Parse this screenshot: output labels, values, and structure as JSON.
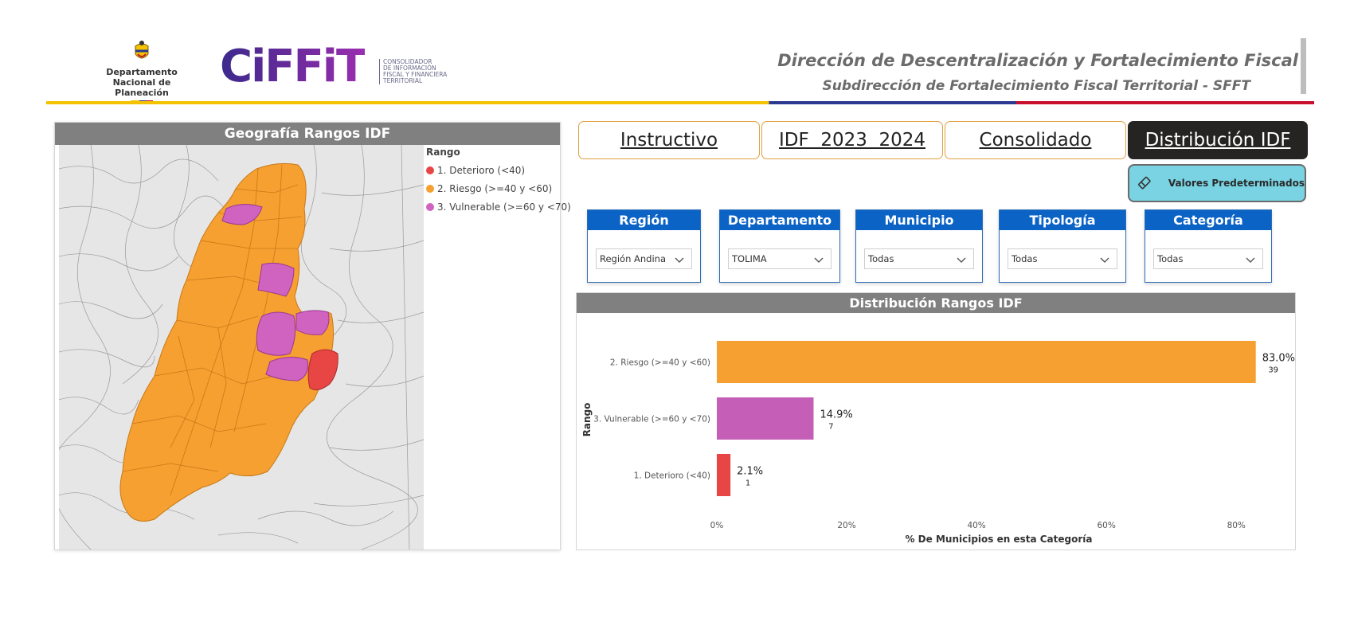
{
  "header": {
    "dnp_line1": "Departamento",
    "dnp_line2": "Nacional de Planeación",
    "ciffit_word": "CiFFiT",
    "ciffit_sub": [
      "CONSOLIDADOR",
      "DE INFORMACIÓN",
      "FISCAL Y FINANCIERA",
      "TERRITORIAL"
    ],
    "title": "Dirección de Descentralización y Fortalecimiento Fiscal",
    "subtitle": "Subdirección de Fortalecimiento Fiscal Territorial - SFFT"
  },
  "map": {
    "title": "Geografía Rangos IDF",
    "legend_title": "Rango",
    "legend": [
      {
        "label": "1. Deterioro (<40)",
        "color": "#e84545"
      },
      {
        "label": "2. Riesgo (>=40 y <60)",
        "color": "#f5a030"
      },
      {
        "label": "3. Vulnerable (>=60 y <70)",
        "color": "#d062c0"
      }
    ]
  },
  "nav": {
    "items": [
      {
        "label": "Instructivo"
      },
      {
        "label": "IDF  2023  2024"
      },
      {
        "label": "Consolidado"
      },
      {
        "label": "Distribución IDF"
      }
    ]
  },
  "reset": {
    "label": "Valores Predeterminados"
  },
  "filters": [
    {
      "title": "Región",
      "value": "Región Andina"
    },
    {
      "title": "Departamento",
      "value": "TOLIMA"
    },
    {
      "title": "Municipio",
      "value": "Todas"
    },
    {
      "title": "Tipología",
      "value": "Todas"
    },
    {
      "title": "Categoría",
      "value": "Todas"
    }
  ],
  "chart": {
    "title": "Distribución Rangos IDF"
  },
  "chart_data": {
    "type": "bar",
    "orientation": "horizontal",
    "categories": [
      "2. Riesgo (>=40 y <60)",
      "3. Vulnerable (>=60 y <70)",
      "1. Deterioro (<40)"
    ],
    "values": [
      83.0,
      14.9,
      2.1
    ],
    "value_labels": [
      "83.0%",
      "14.9%",
      "2.1%"
    ],
    "counts": [
      "39",
      "7",
      "1"
    ],
    "colors": [
      "#f5a030",
      "#c45eb6",
      "#e84545"
    ],
    "ylabel": "Rango",
    "xlabel": "% De Municipios en esta Categoría",
    "xticks": [
      "0%",
      "20%",
      "40%",
      "60%",
      "80%"
    ],
    "xlim": [
      0,
      85
    ]
  }
}
